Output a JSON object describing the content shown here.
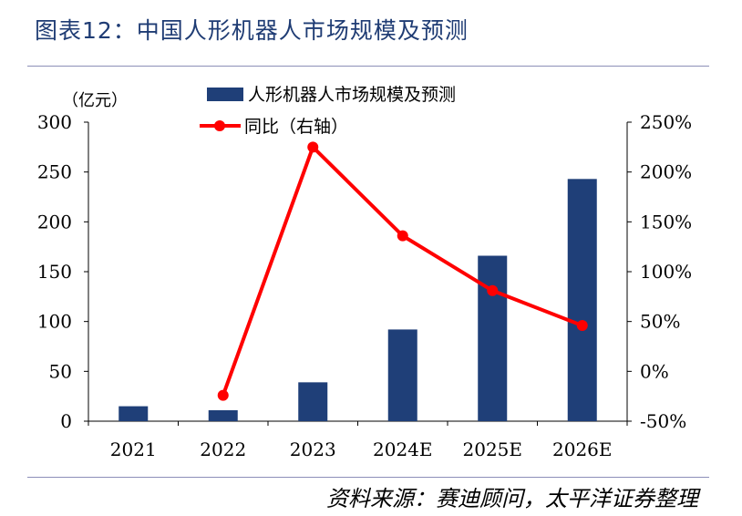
{
  "figure": {
    "title": "图表12：中国人形机器人市场规模及预测",
    "source": "资料来源：赛迪顾问，太平洋证券整理"
  },
  "colors": {
    "bar": "#1f3f78",
    "line": "#ff0000",
    "title": "#1f3c74",
    "rule": "#8c8fb8"
  },
  "chart_data": {
    "type": "bar",
    "categories": [
      "2021",
      "2022",
      "2023",
      "2024E",
      "2025E",
      "2026E"
    ],
    "series": [
      {
        "name": "人形机器人市场规模及预测",
        "type": "bar",
        "axis": "left",
        "values": [
          15,
          11,
          39,
          92,
          166,
          243
        ]
      },
      {
        "name": "同比（右轴）",
        "type": "line",
        "axis": "right",
        "values": [
          null,
          -24,
          225,
          136,
          81,
          46
        ]
      }
    ],
    "y_left": {
      "unit_label": "（亿元）",
      "range": [
        0,
        300
      ],
      "ticks": [
        "0",
        "50",
        "100",
        "150",
        "200",
        "250",
        "300"
      ]
    },
    "y_right": {
      "unit": "%",
      "range": [
        -50,
        250
      ],
      "ticks": [
        "-50%",
        "0%",
        "50%",
        "100%",
        "150%",
        "200%",
        "250%"
      ]
    },
    "grid": false,
    "legend": "top-left"
  }
}
